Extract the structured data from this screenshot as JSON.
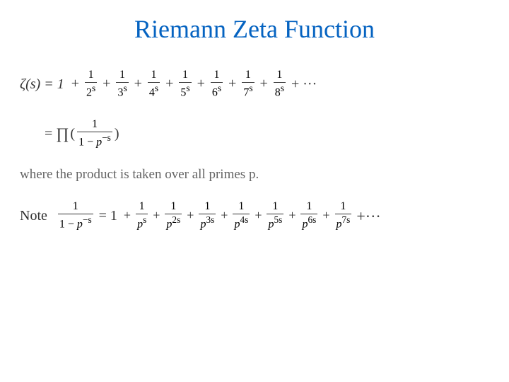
{
  "colors": {
    "title": "#0563c1",
    "body": "#323232",
    "muted": "#646464",
    "bg": "#ffffff"
  },
  "fonts": {
    "title_family": "Times New Roman",
    "title_size_pt": 28,
    "body_size_pt": 15
  },
  "title": "Riemann Zeta Function",
  "eq1": {
    "lhs": "ζ(s) = 1",
    "plus": "+",
    "dots": "+ ···",
    "terms": [
      {
        "num": "1",
        "den": "2",
        "exp": "s"
      },
      {
        "num": "1",
        "den": "3",
        "exp": "s"
      },
      {
        "num": "1",
        "den": "4",
        "exp": "s"
      },
      {
        "num": "1",
        "den": "5",
        "exp": "s"
      },
      {
        "num": "1",
        "den": "6",
        "exp": "s"
      },
      {
        "num": "1",
        "den": "7",
        "exp": "s"
      },
      {
        "num": "1",
        "den": "8",
        "exp": "s"
      }
    ]
  },
  "eq2": {
    "eq": "=",
    "prod": "∏",
    "lpar": "(",
    "rpar": ")",
    "frac": {
      "num": "1",
      "den_a": "1 − ",
      "den_p": "p",
      "den_exp": "−s"
    }
  },
  "caption": "where the product is taken over all primes p.",
  "eq3": {
    "note": "Note",
    "lfrac": {
      "num": "1",
      "den_a": "1 − ",
      "den_p": "p",
      "den_exp": "−s"
    },
    "eq": "= 1",
    "plus": "+",
    "dots": "+···",
    "terms": [
      {
        "num": "1",
        "den_p": "p",
        "exp": "s"
      },
      {
        "num": "1",
        "den_p": "p",
        "exp": "2s"
      },
      {
        "num": "1",
        "den_p": "p",
        "exp": "3s"
      },
      {
        "num": "1",
        "den_p": "p",
        "exp": "4s"
      },
      {
        "num": "1",
        "den_p": "p",
        "exp": "5s"
      },
      {
        "num": "1",
        "den_p": "p",
        "exp": "6s"
      },
      {
        "num": "1",
        "den_p": "p",
        "exp": "7s"
      }
    ]
  }
}
